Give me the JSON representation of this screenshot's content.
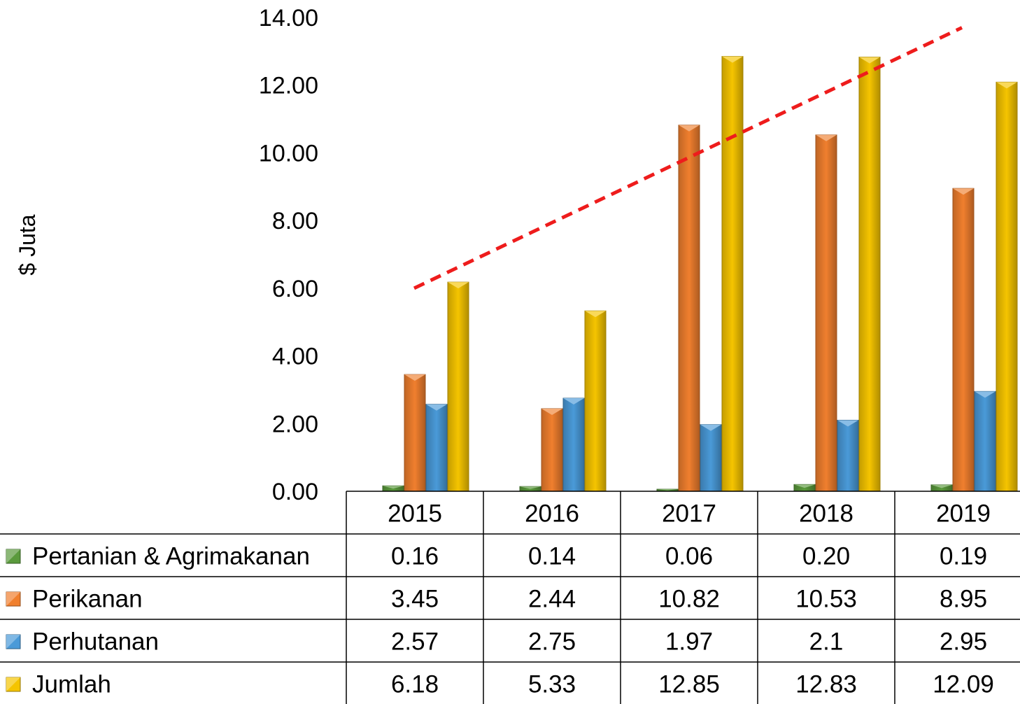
{
  "chart_data": {
    "type": "bar",
    "ylabel": "$ Juta",
    "ylim": [
      0,
      14
    ],
    "y_ticks": [
      "0.00",
      "2.00",
      "4.00",
      "6.00",
      "8.00",
      "10.00",
      "12.00",
      "14.00"
    ],
    "categories": [
      "2015",
      "2016",
      "2017",
      "2018",
      "2019"
    ],
    "series": [
      {
        "name": "Pertanian & Agrimakanan",
        "color": "#5a9a3c",
        "values": [
          0.16,
          0.14,
          0.06,
          0.2,
          0.19
        ],
        "labels": [
          "0.16",
          "0.14",
          "0.06",
          "0.20",
          "0.19"
        ]
      },
      {
        "name": "Perikanan",
        "color": "#f07f2e",
        "values": [
          3.45,
          2.44,
          10.82,
          10.53,
          8.95
        ],
        "labels": [
          "3.45",
          "2.44",
          "10.82",
          "10.53",
          "8.95"
        ]
      },
      {
        "name": "Perhutanan",
        "color": "#4a9ad8",
        "values": [
          2.57,
          2.75,
          1.97,
          2.1,
          2.95
        ],
        "labels": [
          "2.57",
          "2.75",
          "1.97",
          "2.1",
          "2.95"
        ]
      },
      {
        "name": "Jumlah",
        "color": "#f5c400",
        "values": [
          6.18,
          5.33,
          12.85,
          12.83,
          12.09
        ],
        "labels": [
          "6.18",
          "5.33",
          "12.85",
          "12.83",
          "12.09"
        ]
      }
    ],
    "trendline": {
      "color": "#ee1c1c",
      "style": "dashed",
      "from": {
        "x": "2015",
        "y": 6.0
      },
      "to": {
        "x": "2019",
        "y": 13.7
      }
    },
    "data_table": true,
    "grid": false,
    "legend": "data-table"
  }
}
